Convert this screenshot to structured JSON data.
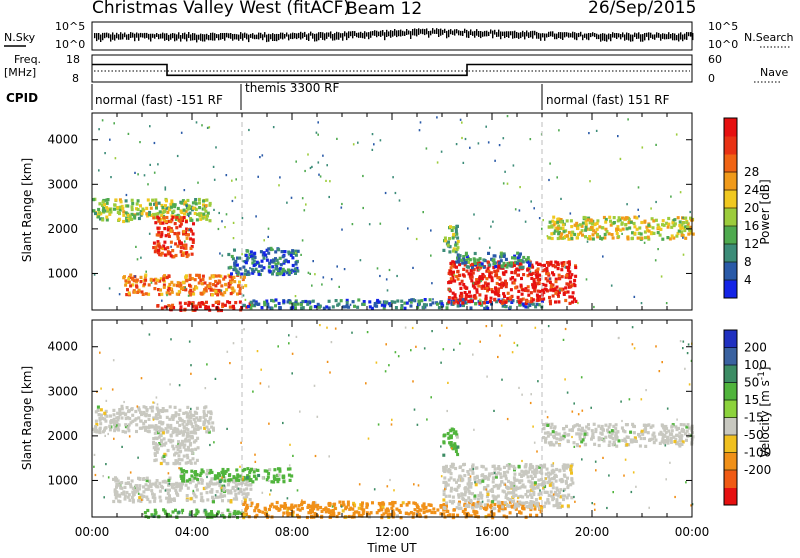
{
  "header": {
    "station": "Christmas Valley West (fitACF)",
    "beam": "Beam 12",
    "date": "26/Sep/2015"
  },
  "noise_panel": {
    "left_label": "N.Sky",
    "right_label": "N.Search",
    "left_ticks": [
      "10^5",
      "10^0"
    ],
    "right_ticks": [
      "10^5",
      "10^0"
    ]
  },
  "freq_panel": {
    "left_label": "Freq.",
    "left_unit": "[MHz]",
    "right_label": "Nave",
    "left_ticks": [
      "18",
      "8"
    ],
    "right_ticks": [
      "60",
      "0"
    ],
    "freq_steps": [
      {
        "start_h": 0,
        "end_h": 3.0,
        "mhz": 14.5
      },
      {
        "start_h": 3.0,
        "end_h": 15.0,
        "mhz": 10.5
      },
      {
        "start_h": 15.0,
        "end_h": 24.0,
        "mhz": 14.5
      }
    ]
  },
  "cpid": {
    "label": "CPID",
    "segments": [
      {
        "text": "normal (fast) -151 RF",
        "start_h": 0,
        "end_h": 6.0
      },
      {
        "text": "themis 3300 RF",
        "start_h": 6.0,
        "end_h": 18.0
      },
      {
        "text": "normal (fast) 151 RF",
        "start_h": 18.0,
        "end_h": 24.0
      }
    ]
  },
  "time_axis": {
    "label": "Time UT",
    "ticks": [
      "00:00",
      "04:00",
      "08:00",
      "12:00",
      "16:00",
      "20:00",
      "00:00"
    ]
  },
  "range_axis": {
    "label": "Slant Range [km]",
    "ticks": [
      "1000",
      "2000",
      "3000",
      "4000"
    ]
  },
  "power_scale": {
    "title": "Power [dB]",
    "ticks": [
      "4",
      "8",
      "12",
      "16",
      "20",
      "24",
      "28"
    ],
    "colors": [
      "#1424e6",
      "#2a5aa8",
      "#3c8c78",
      "#4faa4f",
      "#9ccc3c",
      "#f0c820",
      "#f09a1a",
      "#f06414",
      "#e83214",
      "#e61010"
    ]
  },
  "velocity_scale": {
    "title": "Velocity [m s^-1]",
    "ticks": [
      "200",
      "100",
      "50",
      "15",
      "-15",
      "-50",
      "-100",
      "-200"
    ],
    "colors": [
      "#2030c0",
      "#3a62a0",
      "#3c8c64",
      "#50b43c",
      "#8cd23c",
      "#c8c8c0",
      "#f0c020",
      "#f09018",
      "#f05a14",
      "#e61010"
    ]
  },
  "chart_data": [
    {
      "type": "heatmap",
      "title": "Power",
      "xlabel": "Time UT",
      "ylabel": "Slant Range [km]",
      "xlim_hours": [
        0,
        24
      ],
      "ylim_km": [
        180,
        4600
      ],
      "colorbar": "Power [dB]",
      "blobs": [
        {
          "t0": 0.0,
          "t1": 4.8,
          "r0": 2200,
          "r1": 2700,
          "db": 14
        },
        {
          "t0": 2.4,
          "t1": 4.0,
          "r0": 1400,
          "r1": 2300,
          "db": 26
        },
        {
          "t0": 1.2,
          "t1": 6.1,
          "r0": 550,
          "r1": 1000,
          "db": 22
        },
        {
          "t0": 5.4,
          "t1": 8.2,
          "r0": 1000,
          "r1": 1600,
          "db": 6
        },
        {
          "t0": 2.5,
          "t1": 6.4,
          "r0": 200,
          "r1": 400,
          "db": 28
        },
        {
          "t0": 6.0,
          "t1": 18.0,
          "r0": 250,
          "r1": 450,
          "db": 6
        },
        {
          "t0": 14.2,
          "t1": 19.3,
          "r0": 350,
          "r1": 1300,
          "db": 28
        },
        {
          "t0": 14.5,
          "t1": 17.5,
          "r0": 1150,
          "r1": 1500,
          "db": 8
        },
        {
          "t0": 18.2,
          "t1": 24.0,
          "r0": 1800,
          "r1": 2300,
          "db": 16
        },
        {
          "t0": 14.0,
          "t1": 14.6,
          "r0": 1500,
          "r1": 2100,
          "db": 12
        }
      ]
    },
    {
      "type": "heatmap",
      "title": "Velocity",
      "xlabel": "Time UT",
      "ylabel": "Slant Range [km]",
      "xlim_hours": [
        0,
        24
      ],
      "ylim_km": [
        180,
        4600
      ],
      "colorbar": "Velocity [m s^-1]",
      "blobs": [
        {
          "t0": 0.0,
          "t1": 4.8,
          "r0": 2100,
          "r1": 2700,
          "v": 0
        },
        {
          "t0": 2.4,
          "t1": 4.2,
          "r0": 1400,
          "r1": 2200,
          "v": 0
        },
        {
          "t0": 0.8,
          "t1": 6.3,
          "r0": 550,
          "r1": 1100,
          "v": 0
        },
        {
          "t0": 3.5,
          "t1": 8.0,
          "r0": 1000,
          "r1": 1300,
          "v": 20
        },
        {
          "t0": 2.0,
          "t1": 6.2,
          "r0": 200,
          "r1": 380,
          "v": 30
        },
        {
          "t0": 6.0,
          "t1": 18.0,
          "r0": 200,
          "r1": 550,
          "v": -40
        },
        {
          "t0": 14.0,
          "t1": 19.2,
          "r0": 400,
          "r1": 1400,
          "v": 0
        },
        {
          "t0": 18.0,
          "t1": 24.0,
          "r0": 1800,
          "r1": 2300,
          "v": 0
        },
        {
          "t0": 14.0,
          "t1": 14.6,
          "r0": 1600,
          "r1": 2200,
          "v": 30
        }
      ]
    }
  ]
}
